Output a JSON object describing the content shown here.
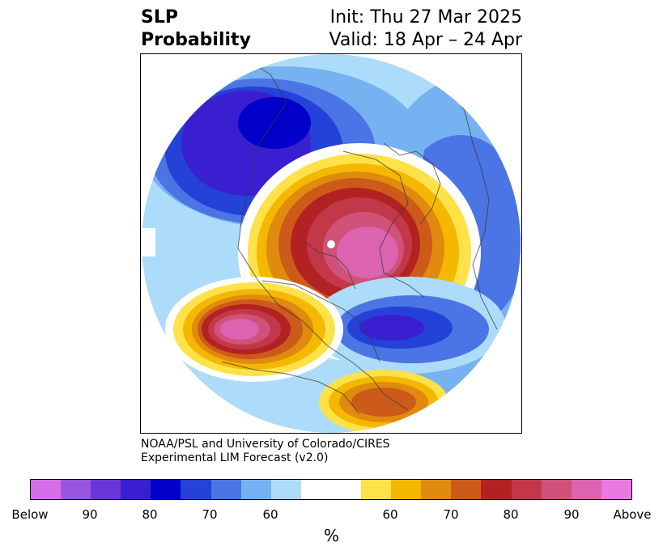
{
  "title": {
    "left_line1": "SLP",
    "left_line2": "Probability",
    "right_line1": "Init: Thu 27 Mar 2025",
    "right_line2": "Valid: 18 Apr – 24 Apr"
  },
  "credit": {
    "line1": "NOAA/PSL and University of Colorado/CIRES",
    "line2": "Experimental LIM Forecast (v2.0)"
  },
  "colorbar": {
    "colors": [
      "#d56fe8",
      "#9a55e0",
      "#6a35d8",
      "#3a1fd0",
      "#0000c8",
      "#2441d8",
      "#4b74e4",
      "#76b2f2",
      "#acdcfa",
      "#ffffff",
      "#ffe24a",
      "#f5b800",
      "#e08a10",
      "#cc5a18",
      "#b22222",
      "#c23848",
      "#d0527a",
      "#dc63b0",
      "#e87ae0"
    ],
    "tick_labels": [
      "Below",
      "90",
      "80",
      "70",
      "60",
      "60",
      "70",
      "80",
      "90",
      "Above"
    ],
    "unit": "%"
  }
}
